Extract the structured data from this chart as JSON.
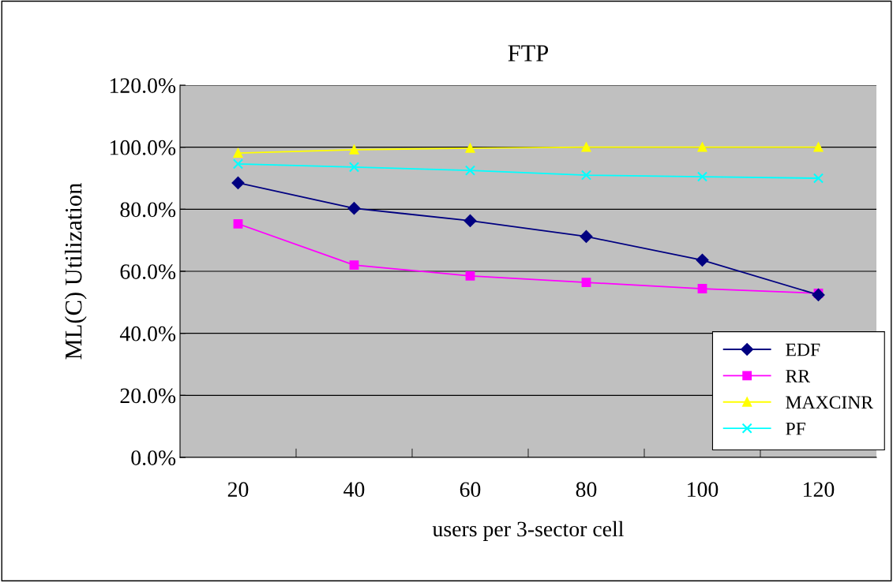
{
  "chart_data": {
    "type": "line",
    "title": "FTP",
    "xlabel": "users per 3-sector cell",
    "ylabel": "ML(C) Utilization",
    "categories": [
      "20",
      "40",
      "60",
      "80",
      "100",
      "120"
    ],
    "series": [
      {
        "name": "EDF",
        "color": "#000080",
        "marker": "diamond",
        "values": [
          88.5,
          80.3,
          76.3,
          71.2,
          63.6,
          52.4
        ]
      },
      {
        "name": "RR",
        "color": "#ff00ff",
        "marker": "square",
        "values": [
          75.3,
          62.0,
          58.5,
          56.4,
          54.4,
          52.9
        ]
      },
      {
        "name": "MAXCINR",
        "color": "#ffff00",
        "marker": "triangle",
        "values": [
          98.1,
          99.2,
          99.7,
          100,
          100,
          100
        ]
      },
      {
        "name": "PF",
        "color": "#00ffff",
        "marker": "cross",
        "values": [
          94.6,
          93.6,
          92.5,
          91.0,
          90.5,
          90.0
        ]
      }
    ],
    "ylim": [
      0,
      120
    ],
    "yticks": [
      {
        "value": 0,
        "label": "0.0%"
      },
      {
        "value": 20,
        "label": "20.0%"
      },
      {
        "value": 40,
        "label": "40.0%"
      },
      {
        "value": 60,
        "label": "60.0%"
      },
      {
        "value": 80,
        "label": "80.0%"
      },
      {
        "value": 100,
        "label": "100.0%"
      },
      {
        "value": 120,
        "label": "120.0%"
      }
    ],
    "grid": "y",
    "legend": "bottom right",
    "line_style": "solid"
  }
}
